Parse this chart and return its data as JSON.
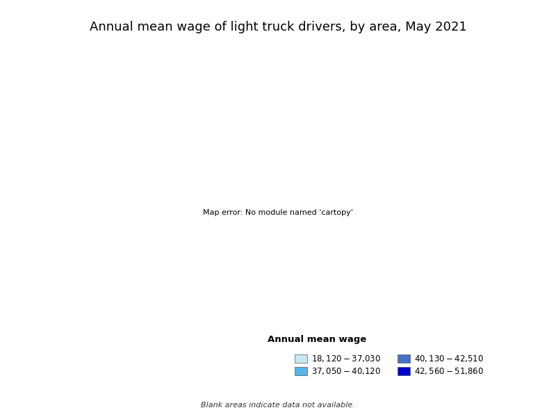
{
  "title": "Annual mean wage of light truck drivers, by area, May 2021",
  "legend_title": "Annual mean wage",
  "legend_items": [
    {
      "label": "$18,120 - $37,030",
      "color": "#c6e8f5"
    },
    {
      "label": "$40,130 - $42,510",
      "color": "#4472c4"
    },
    {
      "label": "$37,050 - $40,120",
      "color": "#56b4e9"
    },
    {
      "label": "$42,560 - $51,860",
      "color": "#0000cd"
    }
  ],
  "blank_note": "Blank areas indicate data not available.",
  "background_color": "#ffffff",
  "title_fontsize": 13,
  "legend_fontsize": 8.5,
  "state_colors": {
    "Washington": "#4472c4",
    "Oregon": "#4472c4",
    "California": "#4472c4",
    "Idaho": "#0000cd",
    "Nevada": "#c6e8f5",
    "Arizona": "#0000cd",
    "Montana": "#0000cd",
    "Wyoming": "#0000cd",
    "Colorado": "#0000cd",
    "Utah": "#0000cd",
    "New Mexico": "#4472c4",
    "North Dakota": "#0000cd",
    "South Dakota": "#0000cd",
    "Nebraska": "#c6e8f5",
    "Kansas": "#c6e8f5",
    "Oklahoma": "#c6e8f5",
    "Texas": "#c6e8f5",
    "Minnesota": "#0000cd",
    "Iowa": "#c6e8f5",
    "Missouri": "#4472c4",
    "Arkansas": "#c6e8f5",
    "Louisiana": "#c6e8f5",
    "Wisconsin": "#0000cd",
    "Illinois": "#0000cd",
    "Indiana": "#0000cd",
    "Ohio": "#4472c4",
    "Michigan": "#0000cd",
    "Kentucky": "#4472c4",
    "Tennessee": "#4472c4",
    "Mississippi": "#c6e8f5",
    "Alabama": "#4472c4",
    "New York": "#4472c4",
    "Pennsylvania": "#4472c4",
    "West Virginia": "#c6e8f5",
    "Virginia": "#4472c4",
    "North Carolina": "#c6e8f5",
    "South Carolina": "#c6e8f5",
    "Georgia": "#4472c4",
    "Florida": "#4472c4",
    "Maine": "#c6e8f5",
    "New Hampshire": "#4472c4",
    "Vermont": "#c6e8f5",
    "Massachusetts": "#56b4e9",
    "Rhode Island": "#56b4e9",
    "Connecticut": "#0000cd",
    "New Jersey": "#0000cd",
    "Delaware": "#4472c4",
    "Maryland": "#0000cd",
    "Alaska": "#0000cd",
    "Hawaii": "#56b4e9"
  }
}
